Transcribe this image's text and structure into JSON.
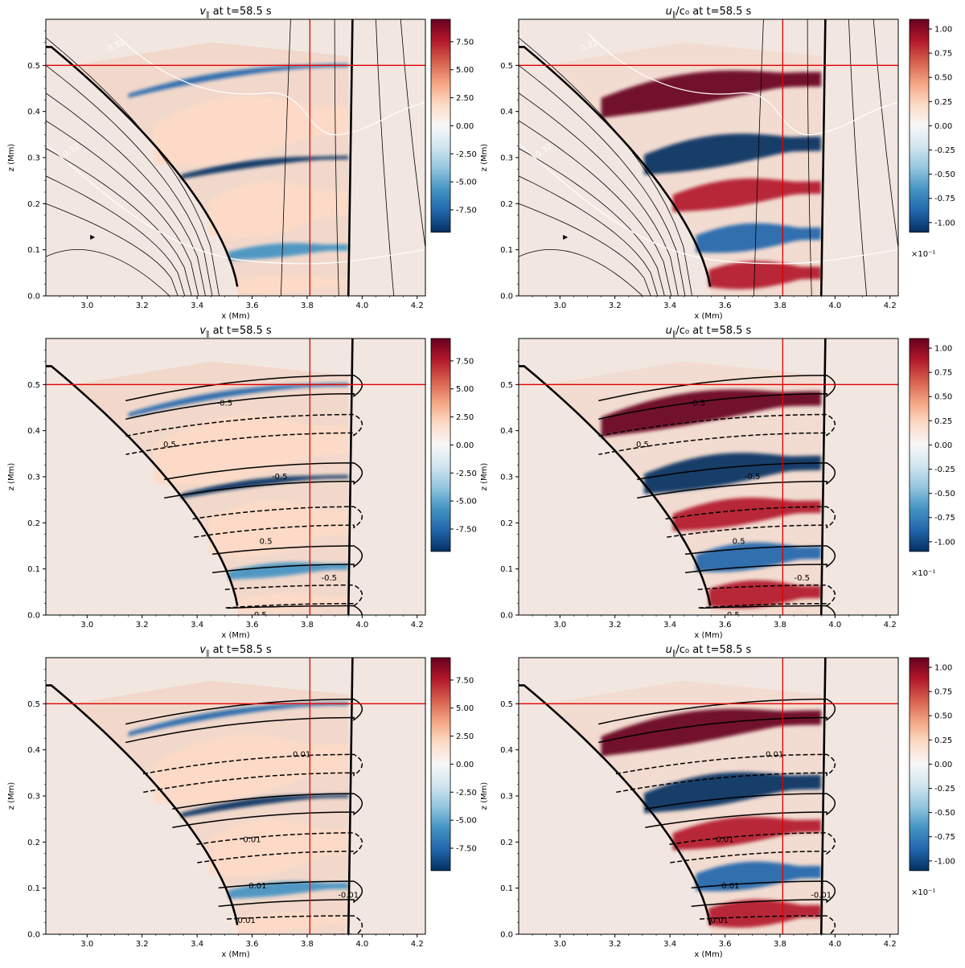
{
  "figure": {
    "description_time": "t=58.5 s"
  },
  "colors": {
    "cmap": [
      "#053061",
      "#2166ac",
      "#4393c3",
      "#92c5de",
      "#d1e5f0",
      "#f7f7f7",
      "#fddbc7",
      "#f4a582",
      "#d6604d",
      "#b2182b",
      "#67001f"
    ],
    "background": "#f2e6e0",
    "ref_line": "#e00000",
    "white_contour": "#ffffff"
  },
  "chart_data": [
    {
      "id": "r1c1",
      "type": "heatmap",
      "title_prefix": "v",
      "title_sub": "∥",
      "title_suffix": " at t=58.5 s",
      "xlabel": "x (Mm)",
      "ylabel": "z (Mm)",
      "xlim": [
        2.85,
        4.23
      ],
      "ylim": [
        0.0,
        0.6
      ],
      "xticks": [
        "3.0",
        "3.2",
        "3.4",
        "3.6",
        "3.8",
        "4.0",
        "4.2"
      ],
      "yticks": [
        "0.0",
        "0.1",
        "0.2",
        "0.3",
        "0.4",
        "0.5"
      ],
      "field": "v",
      "colorbar": {
        "vmin": -9.5,
        "vmax": 9.5,
        "ticks": [
          "7.50",
          "5.00",
          "2.50",
          "0.00",
          "-2.50",
          "-5.00",
          "-7.50"
        ],
        "tick_values": [
          7.5,
          5.0,
          2.5,
          0.0,
          -2.5,
          -5.0,
          -7.5
        ],
        "exponent": ""
      },
      "overlay": "fieldlines",
      "white_contour_labels": [
        "0.32",
        "0.32"
      ],
      "ref_x": 3.81,
      "ref_z": 0.5
    },
    {
      "id": "r1c2",
      "type": "heatmap",
      "title_prefix": "u",
      "title_sub": "∥",
      "title_suffix": "/c₀ at t=58.5 s",
      "xlabel": "x (Mm)",
      "ylabel": "z (Mm)",
      "xlim": [
        2.85,
        4.23
      ],
      "ylim": [
        0.0,
        0.6
      ],
      "xticks": [
        "3.0",
        "3.2",
        "3.4",
        "3.6",
        "3.8",
        "4.0",
        "4.2"
      ],
      "yticks": [
        "0.0",
        "0.1",
        "0.2",
        "0.3",
        "0.4",
        "0.5"
      ],
      "field": "u",
      "colorbar": {
        "vmin": -1.1,
        "vmax": 1.1,
        "ticks": [
          "1.00",
          "0.75",
          "0.50",
          "0.25",
          "0.00",
          "-0.25",
          "-0.50",
          "-0.75",
          "-1.00"
        ],
        "tick_values": [
          1.0,
          0.75,
          0.5,
          0.25,
          0.0,
          -0.25,
          -0.5,
          -0.75,
          -1.0
        ],
        "exponent": "×10⁻¹"
      },
      "overlay": "fieldlines",
      "white_contour_labels": [
        "0.32",
        "0.32"
      ],
      "ref_x": 3.81,
      "ref_z": 0.5
    },
    {
      "id": "r2c1",
      "type": "heatmap",
      "title_prefix": "v",
      "title_sub": "∥",
      "title_suffix": " at t=58.5 s",
      "xlabel": "x (Mm)",
      "ylabel": "z (Mm)",
      "xlim": [
        2.85,
        4.23
      ],
      "ylim": [
        0.0,
        0.6
      ],
      "xticks": [
        "3.0",
        "3.2",
        "3.4",
        "3.6",
        "3.8",
        "4.0",
        "4.2"
      ],
      "yticks": [
        "0.0",
        "0.1",
        "0.2",
        "0.3",
        "0.4",
        "0.5"
      ],
      "field": "v",
      "colorbar": {
        "vmin": -9.5,
        "vmax": 9.5,
        "ticks": [
          "7.50",
          "5.00",
          "2.50",
          "0.00",
          "-2.50",
          "-5.00",
          "-7.50"
        ],
        "tick_values": [
          7.5,
          5.0,
          2.5,
          0.0,
          -2.5,
          -5.0,
          -7.5
        ],
        "exponent": ""
      },
      "overlay": "contours",
      "contour_levels": [
        -0.5,
        0.5
      ],
      "contour_labels": [
        "-0.5",
        "0.5",
        "-0.5",
        "0.5",
        "-0.5",
        "0.5"
      ],
      "ref_x": 3.81,
      "ref_z": 0.5
    },
    {
      "id": "r2c2",
      "type": "heatmap",
      "title_prefix": "u",
      "title_sub": "∥",
      "title_suffix": "/c₀ at t=58.5 s",
      "xlabel": "x (Mm)",
      "ylabel": "z (Mm)",
      "xlim": [
        2.85,
        4.23
      ],
      "ylim": [
        0.0,
        0.6
      ],
      "xticks": [
        "3.0",
        "3.2",
        "3.4",
        "3.6",
        "3.8",
        "4.0",
        "4.2"
      ],
      "yticks": [
        "0.0",
        "0.1",
        "0.2",
        "0.3",
        "0.4",
        "0.5"
      ],
      "field": "u",
      "colorbar": {
        "vmin": -1.1,
        "vmax": 1.1,
        "ticks": [
          "1.00",
          "0.75",
          "0.50",
          "0.25",
          "0.00",
          "-0.25",
          "-0.50",
          "-0.75",
          "-1.00"
        ],
        "tick_values": [
          1.0,
          0.75,
          0.5,
          0.25,
          0.0,
          -0.25,
          -0.5,
          -0.75,
          -1.0
        ],
        "exponent": "×10⁻¹"
      },
      "overlay": "contours",
      "contour_levels": [
        -0.5,
        0.5
      ],
      "contour_labels": [
        "-0.5",
        "0.5",
        "-0.5",
        "0.5",
        "-0.5",
        "0.5"
      ],
      "ref_x": 3.81,
      "ref_z": 0.5
    },
    {
      "id": "r3c1",
      "type": "heatmap",
      "title_prefix": "v",
      "title_sub": "∥",
      "title_suffix": " at t=58.5 s",
      "xlabel": "x (Mm)",
      "ylabel": "z (Mm)",
      "xlim": [
        2.85,
        4.23
      ],
      "ylim": [
        0.0,
        0.6
      ],
      "xticks": [
        "3.0",
        "3.2",
        "3.4",
        "3.6",
        "3.8",
        "4.0",
        "4.2"
      ],
      "yticks": [
        "0.0",
        "0.1",
        "0.2",
        "0.3",
        "0.4",
        "0.5"
      ],
      "field": "v",
      "colorbar": {
        "vmin": -9.5,
        "vmax": 9.5,
        "ticks": [
          "7.50",
          "5.00",
          "2.50",
          "0.00",
          "-2.50",
          "-5.00",
          "-7.50"
        ],
        "tick_values": [
          7.5,
          5.0,
          2.5,
          0.0,
          -2.5,
          -5.0,
          -7.5
        ],
        "exponent": ""
      },
      "overlay": "contours",
      "contour_levels": [
        -0.01,
        0.01
      ],
      "contour_labels": [
        "0.01",
        "0.01",
        "0.01",
        "-0.01",
        "0.01"
      ],
      "ref_x": 3.81,
      "ref_z": 0.5
    },
    {
      "id": "r3c2",
      "type": "heatmap",
      "title_prefix": "u",
      "title_sub": "∥",
      "title_suffix": "/c₀ at t=58.5 s",
      "xlabel": "x (Mm)",
      "ylabel": "z (Mm)",
      "xlim": [
        2.85,
        4.23
      ],
      "ylim": [
        0.0,
        0.6
      ],
      "xticks": [
        "3.0",
        "3.2",
        "3.4",
        "3.6",
        "3.8",
        "4.0",
        "4.2"
      ],
      "yticks": [
        "0.0",
        "0.1",
        "0.2",
        "0.3",
        "0.4",
        "0.5"
      ],
      "field": "u",
      "colorbar": {
        "vmin": -1.1,
        "vmax": 1.1,
        "ticks": [
          "1.00",
          "0.75",
          "0.50",
          "0.25",
          "0.00",
          "-0.25",
          "-0.50",
          "-0.75",
          "-1.00"
        ],
        "tick_values": [
          1.0,
          0.75,
          0.5,
          0.25,
          0.0,
          -0.25,
          -0.5,
          -0.75,
          -1.0
        ],
        "exponent": "×10⁻¹"
      },
      "overlay": "contours",
      "contour_levels": [
        -0.01,
        0.01
      ],
      "contour_labels": [
        "0.01",
        "0.01",
        "0.01",
        "-0.01",
        "0.01"
      ],
      "ref_x": 3.81,
      "ref_z": 0.5
    }
  ]
}
